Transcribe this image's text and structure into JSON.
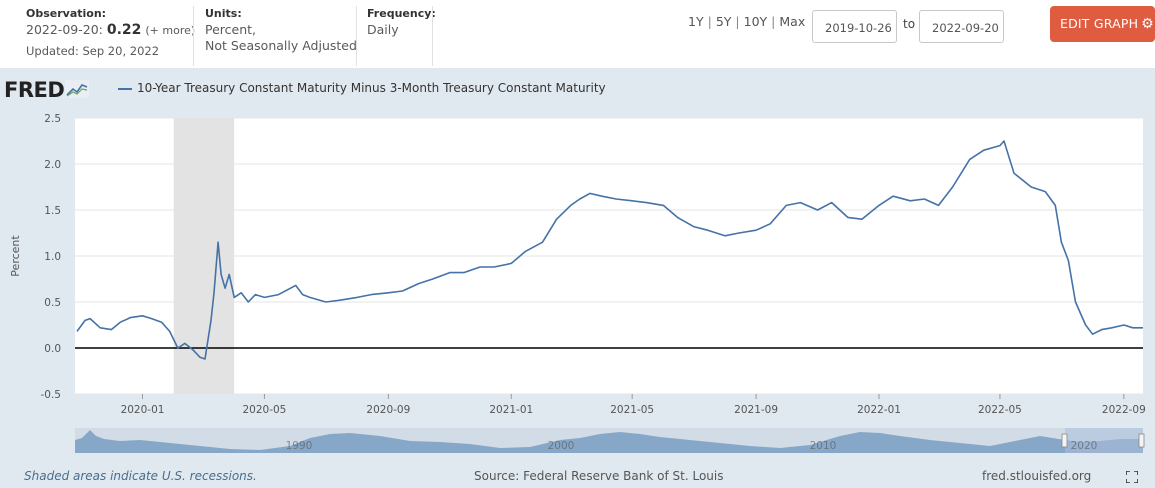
{
  "header": {
    "observation_label": "Observation:",
    "observation_date": "2022-09-20:",
    "observation_value": "0.22",
    "observation_more": "(+ more)",
    "updated": "Updated: Sep 20, 2022",
    "units_label": "Units:",
    "units_line1": "Percent,",
    "units_line2": "Not Seasonally Adjusted",
    "frequency_label": "Frequency:",
    "frequency_value": "Daily",
    "range_buttons": [
      "1Y",
      "5Y",
      "10Y",
      "Max"
    ],
    "date_from": "2019-10-26",
    "to_label": "to",
    "date_to": "2022-09-20",
    "edit_button": "EDIT GRAPH"
  },
  "graph": {
    "logo_text": "FRED",
    "legend_label": "10-Year Treasury Constant Maturity Minus 3-Month Treasury Constant Maturity",
    "footer_left": "Shaded areas indicate U.S. recessions.",
    "footer_mid": "Source: Federal Reserve Bank of St. Louis",
    "footer_right": "fred.stlouisfed.org",
    "navigator_labels": [
      "1990",
      "2000",
      "2010",
      "2020"
    ]
  },
  "colors": {
    "series": "#4572a7",
    "recession": "#e3e3e3",
    "background": "#e1e9f0",
    "edit_button": "#e05c41"
  },
  "chart_data": {
    "type": "line",
    "ylabel": "Percent",
    "ylim": [
      -0.5,
      2.5
    ],
    "yticks": [
      "2.5",
      "2.0",
      "1.5",
      "1.0",
      "0.5",
      "0.0",
      "-0.5"
    ],
    "xlim": [
      "2019-10-26",
      "2022-09-20"
    ],
    "xticks": [
      {
        "date": "2020-01-01",
        "label": "2020-01"
      },
      {
        "date": "2020-05-01",
        "label": "2020-05"
      },
      {
        "date": "2020-09-01",
        "label": "2020-09"
      },
      {
        "date": "2021-01-01",
        "label": "2021-01"
      },
      {
        "date": "2021-05-01",
        "label": "2021-05"
      },
      {
        "date": "2021-09-01",
        "label": "2021-09"
      },
      {
        "date": "2022-01-01",
        "label": "2022-01"
      },
      {
        "date": "2022-05-01",
        "label": "2022-05"
      },
      {
        "date": "2022-09-01",
        "label": "2022-09"
      }
    ],
    "recessions": [
      {
        "start": "2020-02-01",
        "end": "2020-04-01"
      }
    ],
    "zero_line": 0,
    "grid": true,
    "series": [
      {
        "x": [
          "2019-10-28",
          "2019-11-05",
          "2019-11-10",
          "2019-11-20",
          "2019-12-01",
          "2019-12-10",
          "2019-12-20",
          "2020-01-01",
          "2020-01-10",
          "2020-01-20",
          "2020-01-28",
          "2020-02-05",
          "2020-02-12",
          "2020-02-20",
          "2020-02-27",
          "2020-03-03",
          "2020-03-09",
          "2020-03-12",
          "2020-03-16",
          "2020-03-19",
          "2020-03-23",
          "2020-03-27",
          "2020-04-01",
          "2020-04-08",
          "2020-04-15",
          "2020-04-22",
          "2020-05-01",
          "2020-05-15",
          "2020-06-01",
          "2020-06-08",
          "2020-06-15",
          "2020-07-01",
          "2020-07-15",
          "2020-08-01",
          "2020-08-15",
          "2020-09-01",
          "2020-09-15",
          "2020-10-01",
          "2020-10-15",
          "2020-11-01",
          "2020-11-15",
          "2020-12-01",
          "2020-12-15",
          "2021-01-01",
          "2021-01-15",
          "2021-02-01",
          "2021-02-15",
          "2021-03-01",
          "2021-03-10",
          "2021-03-20",
          "2021-04-01",
          "2021-04-15",
          "2021-05-01",
          "2021-05-15",
          "2021-06-01",
          "2021-06-15",
          "2021-07-01",
          "2021-07-15",
          "2021-08-01",
          "2021-08-15",
          "2021-09-01",
          "2021-09-15",
          "2021-10-01",
          "2021-10-15",
          "2021-11-01",
          "2021-11-15",
          "2021-12-01",
          "2021-12-15",
          "2022-01-01",
          "2022-01-15",
          "2022-02-01",
          "2022-02-15",
          "2022-03-01",
          "2022-03-15",
          "2022-04-01",
          "2022-04-15",
          "2022-05-01",
          "2022-05-05",
          "2022-05-15",
          "2022-06-01",
          "2022-06-15",
          "2022-06-25",
          "2022-07-01",
          "2022-07-08",
          "2022-07-15",
          "2022-07-25",
          "2022-08-01",
          "2022-08-10",
          "2022-08-20",
          "2022-09-01",
          "2022-09-10",
          "2022-09-20"
        ],
        "y": [
          0.18,
          0.3,
          0.32,
          0.22,
          0.2,
          0.28,
          0.33,
          0.35,
          0.32,
          0.28,
          0.18,
          0.0,
          0.05,
          -0.02,
          -0.1,
          -0.12,
          0.3,
          0.6,
          1.15,
          0.8,
          0.65,
          0.8,
          0.55,
          0.6,
          0.5,
          0.58,
          0.55,
          0.58,
          0.68,
          0.58,
          0.55,
          0.5,
          0.52,
          0.55,
          0.58,
          0.6,
          0.62,
          0.7,
          0.75,
          0.82,
          0.82,
          0.88,
          0.88,
          0.92,
          1.05,
          1.15,
          1.4,
          1.55,
          1.62,
          1.68,
          1.65,
          1.62,
          1.6,
          1.58,
          1.55,
          1.42,
          1.32,
          1.28,
          1.22,
          1.25,
          1.28,
          1.35,
          1.55,
          1.58,
          1.5,
          1.58,
          1.42,
          1.4,
          1.55,
          1.65,
          1.6,
          1.62,
          1.55,
          1.75,
          2.05,
          2.15,
          2.2,
          2.25,
          1.9,
          1.75,
          1.7,
          1.55,
          1.15,
          0.95,
          0.5,
          0.25,
          0.15,
          0.2,
          0.22,
          0.25,
          0.22,
          0.22
        ]
      }
    ]
  }
}
